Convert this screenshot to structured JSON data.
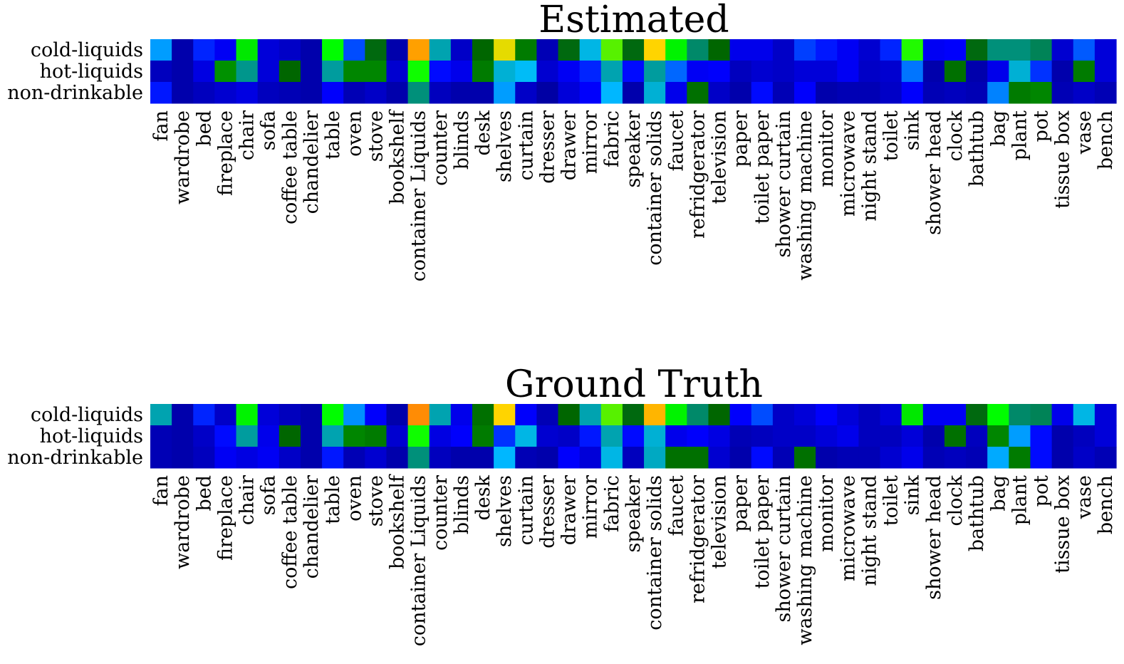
{
  "chart_data": [
    {
      "type": "heatmap",
      "title": "Estimated",
      "rows": [
        "cold-liquids",
        "hot-liquids",
        "non-drinkable"
      ],
      "columns": [
        "fan",
        "wardrobe",
        "bed",
        "fireplace",
        "chair",
        "sofa",
        "coffee table",
        "chandelier",
        "table",
        "oven",
        "stove",
        "bookshelf",
        "container Liquids",
        "counter",
        "blinds",
        "desk",
        "shelves",
        "curtain",
        "dresser",
        "drawer",
        "mirror",
        "fabric",
        "speaker",
        "container solids",
        "faucet",
        "refridgerator",
        "television",
        "paper",
        "toilet paper",
        "shower curtain",
        "washing machine",
        "monitor",
        "microwave",
        "night stand",
        "toilet",
        "sink",
        "shower head",
        "clock",
        "bathtub",
        "bag",
        "plant",
        "pot",
        "tissue box",
        "vase",
        "bench"
      ],
      "values": [
        [
          0.26,
          0.05,
          0.17,
          0.13,
          0.55,
          0.1,
          0.08,
          0.05,
          0.57,
          0.2,
          0.42,
          0.05,
          0.82,
          0.33,
          0.08,
          0.43,
          0.7,
          0.45,
          0.06,
          0.42,
          0.3,
          0.62,
          0.42,
          0.72,
          0.56,
          0.37,
          0.43,
          0.12,
          0.12,
          0.08,
          0.19,
          0.16,
          0.13,
          0.09,
          0.17,
          0.59,
          0.13,
          0.14,
          0.42,
          0.36,
          0.36,
          0.38,
          0.09,
          0.21,
          0.1
        ],
        [
          0.07,
          0.05,
          0.11,
          0.47,
          0.35,
          0.1,
          0.43,
          0.05,
          0.34,
          0.46,
          0.46,
          0.09,
          0.58,
          0.15,
          0.12,
          0.45,
          0.31,
          0.29,
          0.09,
          0.13,
          0.17,
          0.33,
          0.15,
          0.34,
          0.22,
          0.13,
          0.14,
          0.07,
          0.09,
          0.08,
          0.1,
          0.1,
          0.13,
          0.08,
          0.09,
          0.23,
          0.05,
          0.44,
          0.05,
          0.12,
          0.31,
          0.18,
          0.05,
          0.45,
          0.1
        ],
        [
          0.16,
          0.05,
          0.07,
          0.09,
          0.11,
          0.07,
          0.06,
          0.05,
          0.14,
          0.06,
          0.08,
          0.05,
          0.36,
          0.07,
          0.05,
          0.05,
          0.26,
          0.08,
          0.04,
          0.1,
          0.14,
          0.28,
          0.05,
          0.31,
          0.12,
          0.44,
          0.08,
          0.05,
          0.15,
          0.06,
          0.14,
          0.05,
          0.06,
          0.06,
          0.08,
          0.14,
          0.06,
          0.07,
          0.06,
          0.24,
          0.45,
          0.46,
          0.06,
          0.08,
          0.06
        ]
      ],
      "colormap": [
        "#000080",
        "#0000ff",
        "#00bfff",
        "#006400",
        "#00ff00",
        "#ffd700",
        "#ff8c00",
        "#ee82ee"
      ]
    },
    {
      "type": "heatmap",
      "title": "Ground Truth",
      "rows": [
        "cold-liquids",
        "hot-liquids",
        "non-drinkable"
      ],
      "columns": [
        "fan",
        "wardrobe",
        "bed",
        "fireplace",
        "chair",
        "sofa",
        "coffee table",
        "chandelier",
        "table",
        "oven",
        "stove",
        "bookshelf",
        "container Liquids",
        "counter",
        "blinds",
        "desk",
        "shelves",
        "curtain",
        "dresser",
        "drawer",
        "mirror",
        "fabric",
        "speaker",
        "container solids",
        "faucet",
        "refridgerator",
        "television",
        "paper",
        "toilet paper",
        "shower curtain",
        "washing machine",
        "monitor",
        "microwave",
        "night stand",
        "toilet",
        "sink",
        "shower head",
        "clock",
        "bathtub",
        "bag",
        "plant",
        "pot",
        "tissue box",
        "vase",
        "bench"
      ],
      "values": [
        [
          0.33,
          0.05,
          0.17,
          0.08,
          0.56,
          0.1,
          0.07,
          0.05,
          0.57,
          0.25,
          0.14,
          0.05,
          0.86,
          0.33,
          0.12,
          0.44,
          0.72,
          0.14,
          0.06,
          0.43,
          0.33,
          0.62,
          0.42,
          0.78,
          0.56,
          0.37,
          0.43,
          0.14,
          0.2,
          0.08,
          0.1,
          0.14,
          0.1,
          0.07,
          0.1,
          0.55,
          0.13,
          0.13,
          0.42,
          0.57,
          0.37,
          0.38,
          0.12,
          0.3,
          0.1
        ],
        [
          0.06,
          0.05,
          0.08,
          0.15,
          0.34,
          0.12,
          0.43,
          0.05,
          0.33,
          0.46,
          0.45,
          0.09,
          0.58,
          0.11,
          0.14,
          0.45,
          0.18,
          0.3,
          0.09,
          0.08,
          0.16,
          0.33,
          0.15,
          0.31,
          0.12,
          0.14,
          0.11,
          0.06,
          0.07,
          0.08,
          0.08,
          0.1,
          0.12,
          0.07,
          0.07,
          0.1,
          0.05,
          0.44,
          0.07,
          0.46,
          0.26,
          0.15,
          0.05,
          0.07,
          0.1
        ],
        [
          0.06,
          0.05,
          0.07,
          0.13,
          0.11,
          0.13,
          0.08,
          0.05,
          0.16,
          0.06,
          0.09,
          0.05,
          0.36,
          0.07,
          0.05,
          0.05,
          0.28,
          0.06,
          0.05,
          0.14,
          0.1,
          0.3,
          0.07,
          0.32,
          0.44,
          0.44,
          0.09,
          0.05,
          0.15,
          0.06,
          0.44,
          0.05,
          0.06,
          0.06,
          0.09,
          0.12,
          0.06,
          0.07,
          0.06,
          0.27,
          0.45,
          0.15,
          0.05,
          0.08,
          0.06
        ]
      ],
      "colormap": [
        "#000080",
        "#0000ff",
        "#00bfff",
        "#006400",
        "#00ff00",
        "#ffd700",
        "#ff8c00",
        "#ee82ee"
      ]
    }
  ]
}
